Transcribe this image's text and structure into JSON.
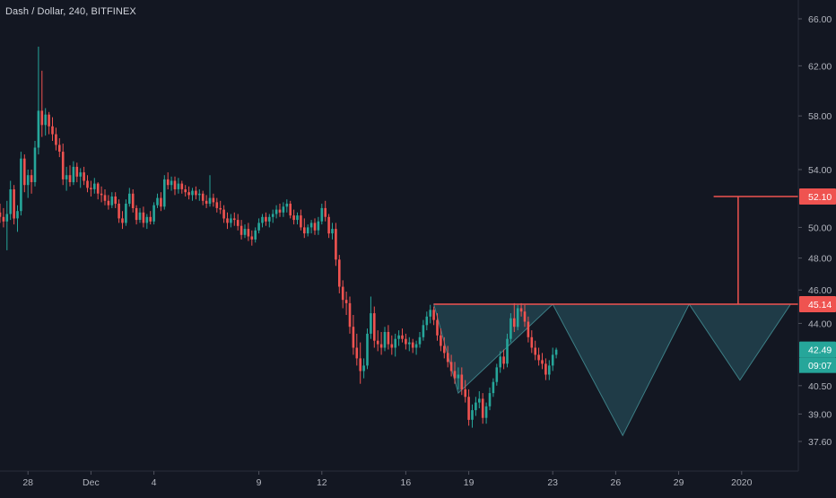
{
  "title": "Dash / Dollar, 240, BITFINEX",
  "colors": {
    "background": "#131722",
    "up": "#26a69a",
    "down": "#ef5350",
    "axis_text": "#b2b5be",
    "pattern_fill": "#2a5a66",
    "level_line": "#ef5350"
  },
  "chart_data": {
    "type": "candlestick",
    "y_axis": {
      "ticks": [
        {
          "v": 66,
          "label": "66.00"
        },
        {
          "v": 62,
          "label": "62.00"
        },
        {
          "v": 58,
          "label": "58.00"
        },
        {
          "v": 54,
          "label": "54.00"
        },
        {
          "v": 50,
          "label": "50.00"
        },
        {
          "v": 48,
          "label": "48.00"
        },
        {
          "v": 46,
          "label": "46.00"
        },
        {
          "v": 44,
          "label": "44.00"
        },
        {
          "v": 40.5,
          "label": "40.50"
        },
        {
          "v": 39,
          "label": "39.00"
        },
        {
          "v": 37.6,
          "label": "37.60"
        }
      ],
      "scale": "log"
    },
    "x_axis": {
      "labels": [
        {
          "i": 8,
          "label": "28"
        },
        {
          "i": 26,
          "label": "Dec"
        },
        {
          "i": 44,
          "label": "4"
        },
        {
          "i": 74,
          "label": "9"
        },
        {
          "i": 92,
          "label": "12"
        },
        {
          "i": 116,
          "label": "16"
        },
        {
          "i": 134,
          "label": "19"
        },
        {
          "i": 158,
          "label": "23"
        },
        {
          "i": 176,
          "label": "26"
        },
        {
          "i": 194,
          "label": "29"
        },
        {
          "i": 212,
          "label": "2020"
        }
      ]
    },
    "price_labels": [
      {
        "price": 52.1,
        "label": "52.10",
        "bg": "#ef5350"
      },
      {
        "price": 45.14,
        "label": "45.14",
        "bg": "#ef5350"
      },
      {
        "price": 42.49,
        "label": "42.49",
        "bg": "#26a69a"
      }
    ],
    "countdown": "09:07",
    "pattern": {
      "polygon_prices": [
        [
          124,
          45.14
        ],
        [
          131,
          40.1
        ],
        [
          158,
          45.14
        ],
        [
          178,
          37.9
        ],
        [
          197,
          45.14
        ],
        [
          211.5,
          40.8
        ],
        [
          226,
          45.14
        ]
      ],
      "neckline": {
        "from_i": 124,
        "to_i": 228,
        "price": 45.14
      },
      "target": {
        "x_i": 211,
        "price_top": 52.1,
        "price_bottom": 45.14,
        "start_i": 204
      }
    },
    "candles": []
  }
}
